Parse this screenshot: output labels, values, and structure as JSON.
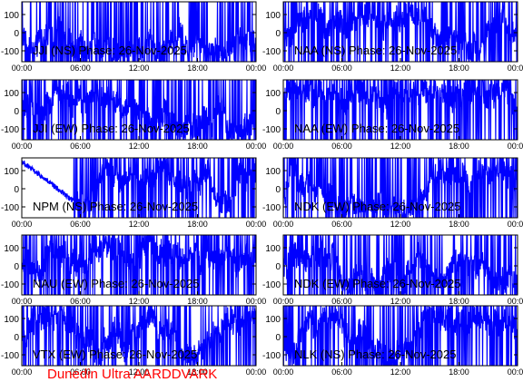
{
  "footer": "Dunedin Ultra AARDDVARK",
  "style": {
    "trace_color": "#0000ff",
    "axis_color": "#000000",
    "footer_color": "#ff0000"
  },
  "chart_data": [
    {
      "type": "line",
      "title": "JJI (NS) Phase: 26-Nov-2025",
      "x_ticks": [
        "00:00",
        "06:00",
        "12:00",
        "18:00",
        "00:00"
      ],
      "y_ticks": [
        "100",
        "0",
        "-100"
      ],
      "ylim": [
        -160,
        170
      ],
      "xlim_hours": [
        0,
        24
      ]
    },
    {
      "type": "line",
      "title": "NAA (NS) Phase: 26-Nov-2025",
      "x_ticks": [
        "00:00",
        "06:00",
        "12:00",
        "18:00",
        "00:00"
      ],
      "y_ticks": [
        "100",
        "0",
        "-100"
      ],
      "ylim": [
        -160,
        170
      ],
      "xlim_hours": [
        0,
        24
      ]
    },
    {
      "type": "line",
      "title": "JJI (EW) Phase: 26-Nov-2025",
      "x_ticks": [
        "00:00",
        "06:00",
        "12:00",
        "18:00",
        "00:00"
      ],
      "y_ticks": [
        "100",
        "0",
        "-100"
      ],
      "ylim": [
        -160,
        170
      ],
      "xlim_hours": [
        0,
        24
      ]
    },
    {
      "type": "line",
      "title": "NAA (EW) Phase: 26-Nov-2025",
      "x_ticks": [
        "00:00",
        "06:00",
        "12:00",
        "18:00",
        "00:00"
      ],
      "y_ticks": [
        "100",
        "0",
        "-100"
      ],
      "ylim": [
        -160,
        170
      ],
      "xlim_hours": [
        0,
        24
      ]
    },
    {
      "type": "line",
      "title": "NPM (NS) Phase: 26-Nov-2025",
      "x_ticks": [
        "00:00",
        "06:00",
        "12:00",
        "18:00",
        "00:00"
      ],
      "y_ticks": [
        "100",
        "0",
        "-100"
      ],
      "ylim": [
        -160,
        170
      ],
      "xlim_hours": [
        0,
        24
      ]
    },
    {
      "type": "line",
      "title": "NDK (EW) Phase: 26-Nov-2025",
      "x_ticks": [
        "00:00",
        "06:00",
        "12:00",
        "18:00",
        "00:00"
      ],
      "y_ticks": [
        "100",
        "0",
        "-100"
      ],
      "ylim": [
        -160,
        170
      ],
      "xlim_hours": [
        0,
        24
      ]
    },
    {
      "type": "line",
      "title": "NAU (EW) Phase: 26-Nov-2025",
      "x_ticks": [
        "00:00",
        "06:00",
        "12:00",
        "18:00",
        "00:00"
      ],
      "y_ticks": [
        "100",
        "0",
        "-100"
      ],
      "ylim": [
        -160,
        170
      ],
      "xlim_hours": [
        0,
        24
      ]
    },
    {
      "type": "line",
      "title": "NDK (EW) Phase: 26-Nov-2025",
      "x_ticks": [
        "00:00",
        "06:00",
        "12:00",
        "18:00",
        "00:00"
      ],
      "y_ticks": [
        "100",
        "0",
        "-100"
      ],
      "ylim": [
        -160,
        170
      ],
      "xlim_hours": [
        0,
        24
      ]
    },
    {
      "type": "line",
      "title": "VTX (EW) Phase: 26-Nov-2025",
      "x_ticks": [
        "00:00",
        "06:00",
        "12:00",
        "18:00",
        "00:00"
      ],
      "y_ticks": [
        "100",
        "0",
        "-100"
      ],
      "ylim": [
        -160,
        170
      ],
      "xlim_hours": [
        0,
        24
      ]
    },
    {
      "type": "line",
      "title": "NLK (NS) Phase: 26-Nov-2025",
      "x_ticks": [
        "00:00",
        "06:00",
        "12:00",
        "18:00",
        "00:00"
      ],
      "y_ticks": [
        "100",
        "0",
        "-100"
      ],
      "ylim": [
        -160,
        170
      ],
      "xlim_hours": [
        0,
        24
      ]
    }
  ]
}
